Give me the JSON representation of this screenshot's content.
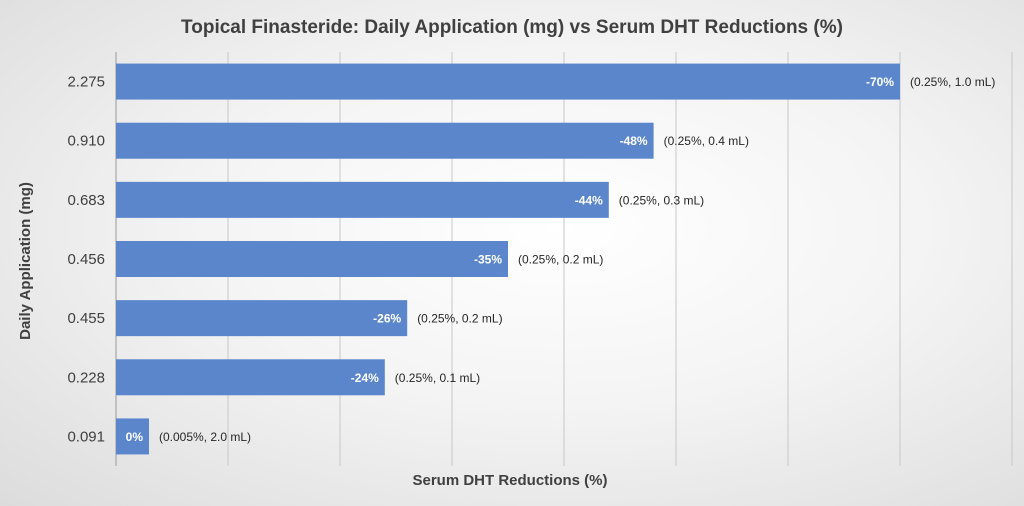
{
  "chart_data": {
    "type": "bar",
    "orientation": "horizontal",
    "title": "Topical Finasteride: Daily Application (mg) vs Serum DHT Reductions (%)",
    "xlabel": "Serum DHT Reductions (%)",
    "ylabel": "Daily Application (mg)",
    "grid": true,
    "categories": [
      "2.275",
      "0.910",
      "0.683",
      "0.456",
      "0.455",
      "0.228",
      "0.091"
    ],
    "values": [
      -70,
      -48,
      -44,
      -35,
      -26,
      -24,
      0
    ],
    "value_labels": [
      "-70%",
      "-48%",
      "-44%",
      "-35%",
      "-26%",
      "-24%",
      "0%"
    ],
    "annotations": [
      "(0.25%, 1.0 mL)",
      "(0.25%, 0.4 mL)",
      "(0.25%, 0.3 mL)",
      "(0.25%, 0.2 mL)",
      "(0.25%, 0.2 mL)",
      "(0.25%, 0.1 mL)",
      "(0.005%, 2.0 mL)"
    ],
    "xlim": [
      0,
      -80
    ],
    "colors": {
      "bar": "#5b86cc",
      "text": "#404040"
    }
  }
}
